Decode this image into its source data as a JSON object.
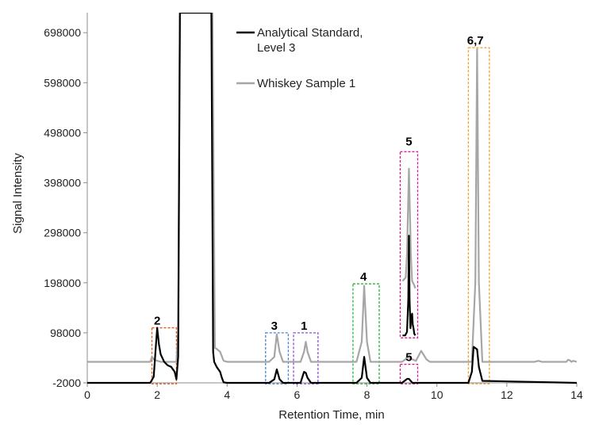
{
  "chart_data": {
    "type": "line",
    "title": "",
    "xlabel": "Retention Time, min",
    "ylabel": "Signal Intensity",
    "xlim": [
      0,
      14
    ],
    "ylim": [
      -2000,
      738000
    ],
    "xticks": [
      0,
      2,
      4,
      6,
      8,
      10,
      12,
      14
    ],
    "yticks": [
      -2000,
      98000,
      198000,
      298000,
      398000,
      498000,
      598000,
      698000
    ],
    "grid": false,
    "legend_position": "top-center",
    "series": [
      {
        "name": "Analytical Standard, Level 3",
        "color": "#000000",
        "x": [
          0,
          1.8,
          1.9,
          1.95,
          2.0,
          2.05,
          2.1,
          2.2,
          2.3,
          2.4,
          2.5,
          2.55,
          2.6,
          2.65,
          3.55,
          3.6,
          3.63,
          3.7,
          3.8,
          3.85,
          3.9,
          4.0,
          5.2,
          5.35,
          5.42,
          5.5,
          5.6,
          6.1,
          6.2,
          6.25,
          6.3,
          6.4,
          7.7,
          7.85,
          7.92,
          8.0,
          8.1,
          9.0,
          9.15,
          9.2,
          9.3,
          10.9,
          11.0,
          11.05,
          11.15,
          11.2,
          11.3,
          14.0
        ],
        "values": [
          -2000,
          -2000,
          10000,
          60000,
          108000,
          75000,
          55000,
          40000,
          33000,
          30000,
          20000,
          5000,
          50000,
          738000,
          738000,
          60000,
          40000,
          30000,
          20000,
          8000,
          -1000,
          -2000,
          -2000,
          5000,
          25000,
          5000,
          -2000,
          -2000,
          20000,
          18000,
          8000,
          -2000,
          -2000,
          8000,
          50000,
          8000,
          -2000,
          -2000,
          6000,
          6000,
          -2000,
          -2000,
          20000,
          70000,
          65000,
          30000,
          2000,
          -2000
        ]
      },
      {
        "name": "Whiskey Sample 1",
        "color": "#a6a6a6",
        "x": [
          0,
          1.8,
          1.85,
          1.9,
          2.0,
          2.1,
          2.3,
          2.55,
          2.6,
          2.65,
          3.58,
          3.65,
          3.7,
          3.8,
          3.9,
          4.0,
          4.2,
          5.2,
          5.35,
          5.42,
          5.5,
          5.6,
          6.1,
          6.2,
          6.25,
          6.3,
          6.4,
          7.7,
          7.85,
          7.92,
          8.0,
          8.1,
          9.0,
          9.1,
          9.15,
          9.3,
          9.4,
          9.55,
          9.7,
          9.8,
          11.0,
          11.1,
          11.15,
          11.2,
          11.3,
          12.8,
          12.9,
          13.0,
          13.7,
          13.75,
          13.8,
          13.85,
          13.9,
          14.0
        ],
        "values": [
          40000,
          40000,
          50000,
          45000,
          42000,
          40000,
          40000,
          40000,
          100000,
          738000,
          738000,
          68000,
          66000,
          60000,
          42000,
          40000,
          40000,
          40000,
          50000,
          95000,
          60000,
          40000,
          40000,
          60000,
          80000,
          60000,
          40000,
          40000,
          80000,
          192000,
          80000,
          40000,
          40000,
          45000,
          50000,
          45000,
          42000,
          62000,
          45000,
          40000,
          40000,
          200000,
          665000,
          200000,
          40000,
          40000,
          42000,
          40000,
          40000,
          44000,
          43000,
          40000,
          42000,
          40000
        ]
      }
    ],
    "insets": [
      {
        "label": "5",
        "series": [
          {
            "name": "Whiskey Sample 1",
            "color": "#a6a6a6",
            "x": [
              0,
              0.25,
              0.35,
              0.5,
              0.65,
              0.75,
              0.9,
              1.0
            ],
            "values": [
              0.3,
              0.32,
              0.45,
              0.92,
              0.45,
              0.3,
              0.28,
              0.26
            ]
          },
          {
            "name": "Analytical Standard, Level 3",
            "color": "#000000",
            "x": [
              0,
              0.2,
              0.35,
              0.45,
              0.5,
              0.55,
              0.62,
              0.68,
              0.75,
              0.8,
              0.86,
              0.92,
              1.0
            ],
            "values": [
              0.0,
              0.0,
              0.02,
              0.2,
              0.55,
              0.2,
              0.04,
              0.1,
              0.12,
              0.06,
              0.04,
              0.01,
              0.0
            ]
          }
        ]
      }
    ],
    "annotations": [
      {
        "label": "2",
        "color": "#e05a1a",
        "box_x": [
          1.85,
          2.55
        ],
        "box_y": [
          -4000,
          108000
        ],
        "label_pos": [
          2.0,
          108000
        ]
      },
      {
        "label": "3",
        "color": "#4a7fd4",
        "box_x": [
          5.1,
          5.75
        ],
        "box_y": [
          -4000,
          98000
        ],
        "label_pos": [
          5.35,
          98000
        ]
      },
      {
        "label": "1",
        "color": "#8a4fd8",
        "box_x": [
          5.9,
          6.6
        ],
        "box_y": [
          -4000,
          98000
        ],
        "label_pos": [
          6.2,
          98000
        ]
      },
      {
        "label": "4",
        "color": "#28b040",
        "box_x": [
          7.6,
          8.35
        ],
        "box_y": [
          -4000,
          196000
        ],
        "label_pos": [
          7.9,
          196000
        ]
      },
      {
        "label": "5",
        "color": "#d81b90",
        "box_x": [
          8.95,
          9.45
        ],
        "box_y": [
          -4000,
          35000
        ],
        "label_pos": [
          9.2,
          35000
        ]
      },
      {
        "label": "6,7",
        "color": "#f0a030",
        "box_x": [
          10.9,
          11.5
        ],
        "box_y": [
          -4000,
          668000
        ],
        "label_pos": [
          11.1,
          668000
        ]
      }
    ],
    "inset_box": {
      "label": "5",
      "color": "#d81b90"
    }
  }
}
